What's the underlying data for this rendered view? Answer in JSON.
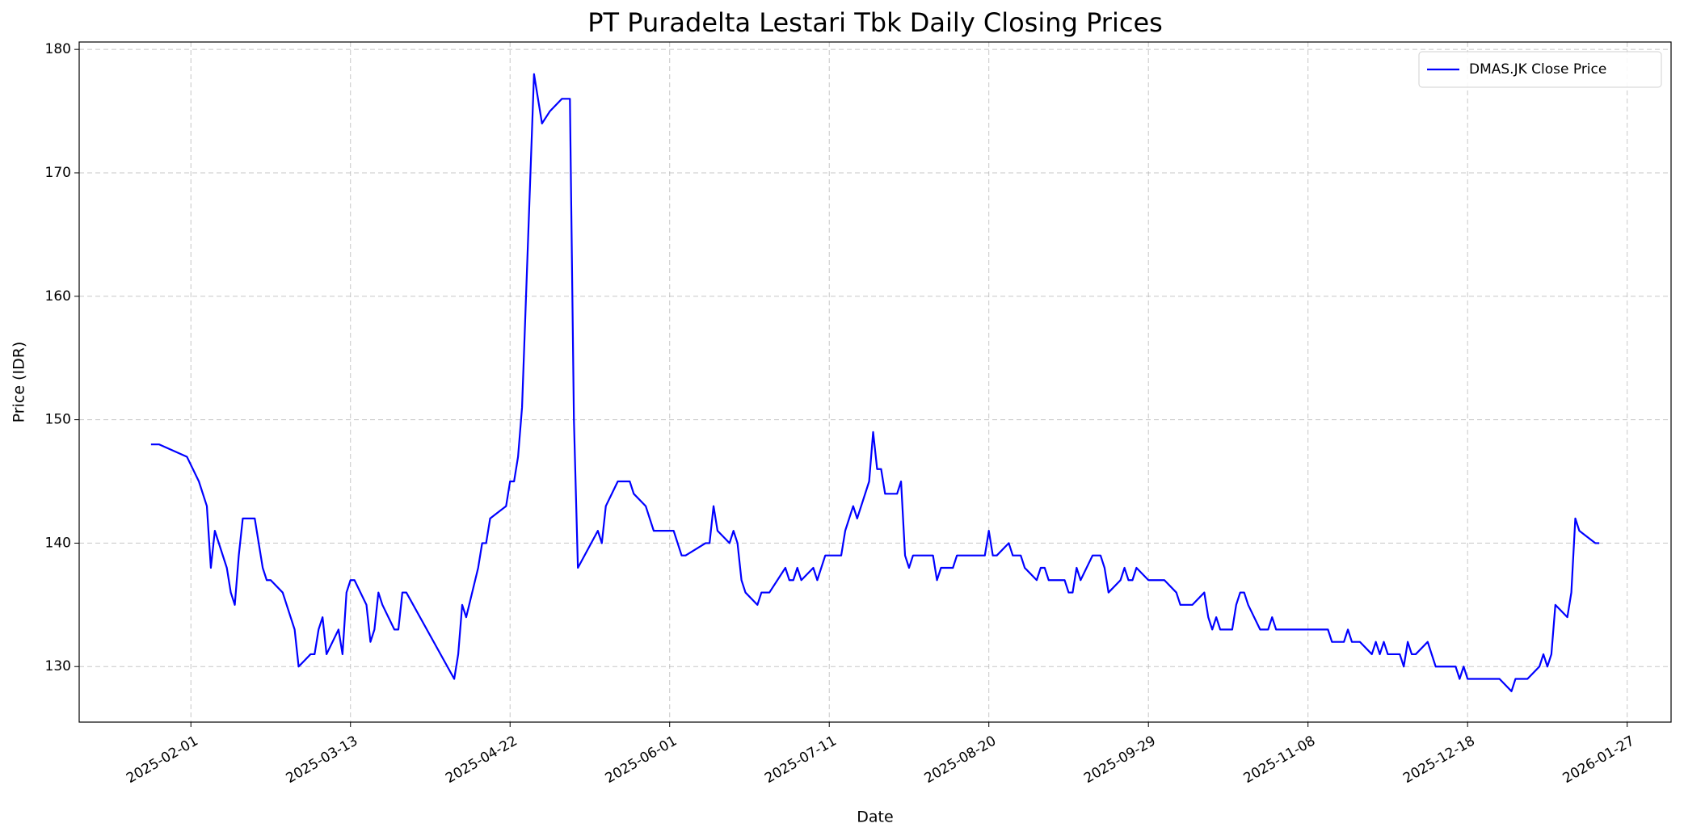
{
  "chart_data": {
    "type": "line",
    "title": "PT Puradelta Lestari Tbk Daily Closing Prices",
    "x_label": "Date",
    "y_label": "Price (IDR)",
    "x": [
      "2025-01-22",
      "2025-01-24",
      "2025-01-31",
      "2025-02-03",
      "2025-02-05",
      "2025-02-06",
      "2025-02-07",
      "2025-02-10",
      "2025-02-11",
      "2025-02-12",
      "2025-02-13",
      "2025-02-14",
      "2025-02-17",
      "2025-02-18",
      "2025-02-19",
      "2025-02-20",
      "2025-02-21",
      "2025-02-24",
      "2025-02-27",
      "2025-02-28",
      "2025-03-03",
      "2025-03-04",
      "2025-03-05",
      "2025-03-06",
      "2025-03-07",
      "2025-03-10",
      "2025-03-11",
      "2025-03-12",
      "2025-03-13",
      "2025-03-14",
      "2025-03-17",
      "2025-03-18",
      "2025-03-19",
      "2025-03-20",
      "2025-03-21",
      "2025-03-24",
      "2025-03-25",
      "2025-03-26",
      "2025-03-27",
      "2025-04-08",
      "2025-04-09",
      "2025-04-10",
      "2025-04-11",
      "2025-04-14",
      "2025-04-15",
      "2025-04-16",
      "2025-04-17",
      "2025-04-21",
      "2025-04-22",
      "2025-04-23",
      "2025-04-24",
      "2025-04-25",
      "2025-04-27",
      "2025-04-28",
      "2025-04-29",
      "2025-04-30",
      "2025-05-02",
      "2025-05-05",
      "2025-05-07",
      "2025-05-08",
      "2025-05-09",
      "2025-05-14",
      "2025-05-15",
      "2025-05-16",
      "2025-05-19",
      "2025-05-22",
      "2025-05-23",
      "2025-05-26",
      "2025-05-28",
      "2025-06-02",
      "2025-06-04",
      "2025-06-05",
      "2025-06-10",
      "2025-06-11",
      "2025-06-12",
      "2025-06-13",
      "2025-06-16",
      "2025-06-17",
      "2025-06-18",
      "2025-06-19",
      "2025-06-20",
      "2025-06-23",
      "2025-06-24",
      "2025-06-26",
      "2025-06-30",
      "2025-07-01",
      "2025-07-02",
      "2025-07-03",
      "2025-07-04",
      "2025-07-07",
      "2025-07-08",
      "2025-07-10",
      "2025-07-14",
      "2025-07-15",
      "2025-07-17",
      "2025-07-18",
      "2025-07-21",
      "2025-07-22",
      "2025-07-23",
      "2025-07-24",
      "2025-07-25",
      "2025-07-28",
      "2025-07-29",
      "2025-07-30",
      "2025-07-31",
      "2025-08-01",
      "2025-08-06",
      "2025-08-07",
      "2025-08-08",
      "2025-08-11",
      "2025-08-12",
      "2025-08-19",
      "2025-08-20",
      "2025-08-21",
      "2025-08-22",
      "2025-08-25",
      "2025-08-26",
      "2025-08-28",
      "2025-08-29",
      "2025-09-01",
      "2025-09-02",
      "2025-09-03",
      "2025-09-04",
      "2025-09-08",
      "2025-09-09",
      "2025-09-10",
      "2025-09-11",
      "2025-09-12",
      "2025-09-15",
      "2025-09-17",
      "2025-09-18",
      "2025-09-19",
      "2025-09-22",
      "2025-09-23",
      "2025-09-24",
      "2025-09-25",
      "2025-09-26",
      "2025-09-29",
      "2025-10-03",
      "2025-10-06",
      "2025-10-07",
      "2025-10-10",
      "2025-10-13",
      "2025-10-14",
      "2025-10-15",
      "2025-10-16",
      "2025-10-17",
      "2025-10-20",
      "2025-10-21",
      "2025-10-22",
      "2025-10-23",
      "2025-10-24",
      "2025-10-27",
      "2025-10-29",
      "2025-10-30",
      "2025-10-31",
      "2025-11-13",
      "2025-11-14",
      "2025-11-17",
      "2025-11-18",
      "2025-11-19",
      "2025-11-21",
      "2025-11-24",
      "2025-11-25",
      "2025-11-26",
      "2025-11-27",
      "2025-11-28",
      "2025-12-01",
      "2025-12-02",
      "2025-12-03",
      "2025-12-04",
      "2025-12-05",
      "2025-12-08",
      "2025-12-10",
      "2025-12-15",
      "2025-12-16",
      "2025-12-17",
      "2025-12-18",
      "2025-12-26",
      "2025-12-29",
      "2025-12-30",
      "2026-01-02",
      "2026-01-05",
      "2026-01-06",
      "2026-01-07",
      "2026-01-08",
      "2026-01-09",
      "2026-01-12",
      "2026-01-13",
      "2026-01-14",
      "2026-01-15",
      "2026-01-19",
      "2026-01-20"
    ],
    "series": [
      {
        "name": "DMAS.JK Close Price",
        "color": "#0000ff",
        "values": [
          148,
          148,
          147,
          145,
          143,
          138,
          141,
          138,
          136,
          135,
          139,
          142,
          142,
          140,
          138,
          137,
          137,
          136,
          133,
          130,
          131,
          131,
          133,
          134,
          131,
          133,
          131,
          136,
          137,
          137,
          135,
          132,
          133,
          136,
          135,
          133,
          133,
          136,
          136,
          129,
          131,
          135,
          134,
          138,
          140,
          140,
          142,
          143,
          145,
          145,
          147,
          151,
          169,
          178,
          176,
          174,
          175,
          176,
          176,
          150,
          138,
          141,
          140,
          143,
          145,
          145,
          144,
          143,
          141,
          141,
          139,
          139,
          140,
          140,
          143,
          141,
          140,
          141,
          140,
          137,
          136,
          135,
          136,
          136,
          138,
          137,
          137,
          138,
          137,
          138,
          137,
          139,
          139,
          141,
          143,
          142,
          145,
          149,
          146,
          146,
          144,
          144,
          145,
          139,
          138,
          139,
          139,
          137,
          138,
          138,
          139,
          139,
          141,
          139,
          139,
          140,
          139,
          139,
          138,
          137,
          138,
          138,
          137,
          137,
          136,
          136,
          138,
          137,
          139,
          139,
          138,
          136,
          137,
          138,
          137,
          137,
          138,
          137,
          137,
          136,
          135,
          135,
          136,
          134,
          133,
          134,
          133,
          133,
          135,
          136,
          136,
          135,
          133,
          133,
          134,
          133,
          133,
          132,
          132,
          133,
          132,
          132,
          131,
          132,
          131,
          132,
          131,
          131,
          130,
          132,
          131,
          131,
          132,
          130,
          130,
          129,
          130,
          129,
          129,
          128,
          129,
          129,
          130,
          131,
          130,
          131,
          135,
          134,
          136,
          142,
          141,
          140,
          140
        ]
      }
    ],
    "xlim": [
      "2025-01-04",
      "2026-02-07"
    ],
    "xticks": [
      "2025-02-01",
      "2025-03-13",
      "2025-04-22",
      "2025-06-01",
      "2025-07-11",
      "2025-08-20",
      "2025-09-29",
      "2025-11-08",
      "2025-12-18",
      "2026-01-27"
    ],
    "ylim": [
      125.5,
      180.6
    ],
    "yticks": [
      130,
      140,
      150,
      160,
      170,
      180
    ],
    "grid": true,
    "legend": "upper right"
  }
}
